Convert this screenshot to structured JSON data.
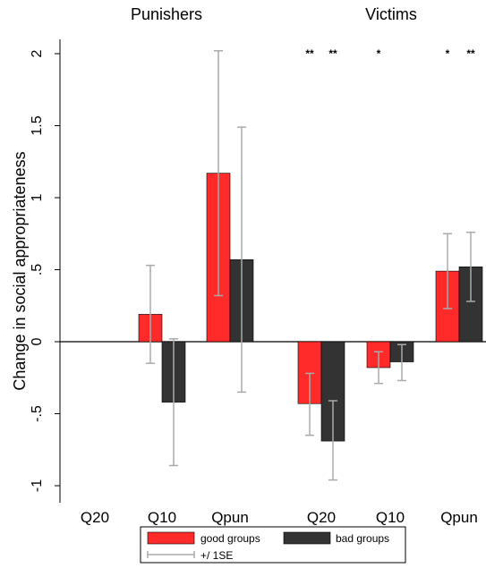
{
  "chart_data": {
    "type": "bar",
    "ylabel": "Change in social appropriateness",
    "ylim": [
      -1,
      2
    ],
    "yticks": [
      {
        "value": 2,
        "label": "2"
      },
      {
        "value": 1.5,
        "label": "1.5"
      },
      {
        "value": 1,
        "label": "1"
      },
      {
        "value": 0.5,
        "label": ".5"
      },
      {
        "value": 0,
        "label": "0"
      },
      {
        "value": -0.5,
        "label": "-.5"
      },
      {
        "value": -1,
        "label": "-1"
      }
    ],
    "panels": [
      {
        "title": "Punishers",
        "categories": [
          "Q20",
          "Q10",
          "Qpun"
        ],
        "series": [
          {
            "name": "good groups",
            "color": "#ff2a2a",
            "values": [
              0,
              0.19,
              1.17
            ],
            "se_low": [
              0,
              -0.15,
              0.32
            ],
            "se_high": [
              0,
              0.53,
              2.02
            ],
            "significance": [
              "",
              "",
              ""
            ]
          },
          {
            "name": "bad groups",
            "color": "#333333",
            "values": [
              0,
              -0.42,
              0.57
            ],
            "se_low": [
              0,
              -0.86,
              -0.35
            ],
            "se_high": [
              0,
              0.02,
              1.49
            ],
            "significance": [
              "",
              "",
              ""
            ]
          }
        ]
      },
      {
        "title": "Victims",
        "categories": [
          "Q20",
          "Q10",
          "Qpun"
        ],
        "series": [
          {
            "name": "good groups",
            "color": "#ff2a2a",
            "values": [
              -0.43,
              -0.18,
              0.49
            ],
            "se_low": [
              -0.65,
              -0.29,
              0.23
            ],
            "se_high": [
              -0.22,
              -0.07,
              0.75
            ],
            "significance": [
              "**",
              "*",
              "*"
            ]
          },
          {
            "name": "bad groups",
            "color": "#333333",
            "values": [
              -0.69,
              -0.14,
              0.52
            ],
            "se_low": [
              -0.96,
              -0.27,
              0.28
            ],
            "se_high": [
              -0.41,
              -0.02,
              0.76
            ],
            "significance": [
              "**",
              "",
              "**"
            ]
          }
        ]
      }
    ],
    "legend": {
      "items": [
        {
          "label": "good groups",
          "color": "#ff2a2a"
        },
        {
          "label": "bad groups",
          "color": "#333333"
        }
      ],
      "errorbar_label": "+/ 1SE",
      "position": "bottom"
    }
  }
}
